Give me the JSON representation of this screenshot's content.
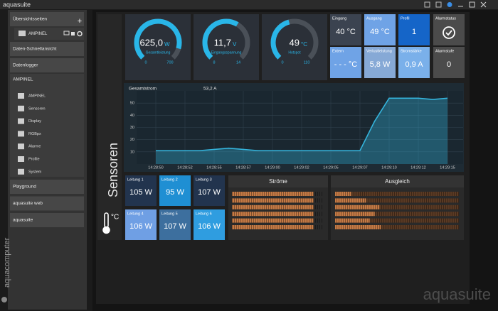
{
  "window": {
    "title": "aquasuite",
    "watermark": "aquasuite",
    "brand": "aquacomputer"
  },
  "sidebar": {
    "overview": "Übersichtsseiten",
    "overview_page": "AMPINEL",
    "quick_view": "Daten-Schnellansicht",
    "logger": "Datenlogger",
    "device": "AMPINEL",
    "device_pages": [
      "AMPINEL",
      "Sensoren",
      "Display",
      "RGBpx",
      "Alarme",
      "Profile",
      "System"
    ],
    "links": [
      "Playground",
      "aquasuite web",
      "aquasuite"
    ]
  },
  "page": {
    "title": "Sensoren",
    "unit": "°C"
  },
  "gauges": [
    {
      "value": 625.0,
      "value_label": "625,0",
      "unit": "W",
      "label": "Gesamtleistung",
      "min": 0,
      "max": 700
    },
    {
      "value": 11.7,
      "value_label": "11,7",
      "unit": "V",
      "label": "Eingangsspannung",
      "min": 8,
      "max": 14
    },
    {
      "value": 49,
      "unit": "°C",
      "label": "Hotspot",
      "min": 0,
      "max": 110
    }
  ],
  "tiles": [
    {
      "label": "Eingang",
      "value": "40 °C",
      "color": "#3b4350"
    },
    {
      "label": "Ausgang",
      "value": "49 °C",
      "color": "#6fa3e6"
    },
    {
      "label": "Profil",
      "value": "1",
      "color": "#1565c8"
    },
    {
      "label": "Alarmstatus",
      "icon": "check",
      "color": "#4b4b4b"
    },
    {
      "label": "Extern",
      "value": "- - - °C",
      "color": "#6fa3e6"
    },
    {
      "label": "Verlustleistung",
      "value": "5,8 W",
      "color": "#86a9d6"
    },
    {
      "label": "Stromstärke",
      "value": "0,9 A",
      "color": "#7ab0ea"
    },
    {
      "label": "Alarmstufe",
      "value": "0",
      "color": "#4b4b4b"
    }
  ],
  "lines": [
    {
      "label": "Leitung 1",
      "value": "105 W",
      "color": "#22344e"
    },
    {
      "label": "Leitung 2",
      "value": "95 W",
      "color": "#1f8fd3"
    },
    {
      "label": "Leitung 3",
      "value": "107 W",
      "color": "#22344e"
    },
    {
      "label": "Leitung 4",
      "value": "106 W",
      "color": "#6f9fe4"
    },
    {
      "label": "Leitung 5",
      "value": "107 W",
      "color": "#3d6f9e"
    },
    {
      "label": "Leitung 6",
      "value": "106 W",
      "color": "#2f9de0"
    }
  ],
  "chart": {
    "type": "line",
    "title": "Gesamtstrom",
    "current": "53,2 A",
    "categories": [
      "14:28:50",
      null,
      "14:28:52",
      null,
      "14:28:55",
      null,
      "14:28:57",
      null,
      "14:29:00",
      null,
      "14:29:02",
      null,
      "14:29:05",
      null,
      "14:29:07",
      null,
      "14:29:10",
      null,
      "14:29:12",
      null,
      "14:29:15"
    ],
    "values": [
      11,
      11,
      11,
      11,
      12,
      13,
      12,
      11,
      11,
      11,
      11,
      11,
      11,
      11,
      11,
      35,
      54,
      54,
      54,
      53,
      54
    ],
    "color": "#35b4dc",
    "ylim": [
      0,
      60
    ],
    "yticks": [
      10,
      20,
      30,
      40,
      50
    ],
    "grid": true
  },
  "currents": {
    "title": "Ströme",
    "values": [
      89,
      89,
      89,
      89,
      89,
      89
    ],
    "xlim": [
      0,
      100
    ],
    "color": "#c47a45"
  },
  "balance": {
    "title": "Ausgleich",
    "values": [
      13,
      25,
      36,
      32,
      28,
      37
    ],
    "xlim": [
      0,
      100
    ],
    "color": "#c47a45"
  }
}
